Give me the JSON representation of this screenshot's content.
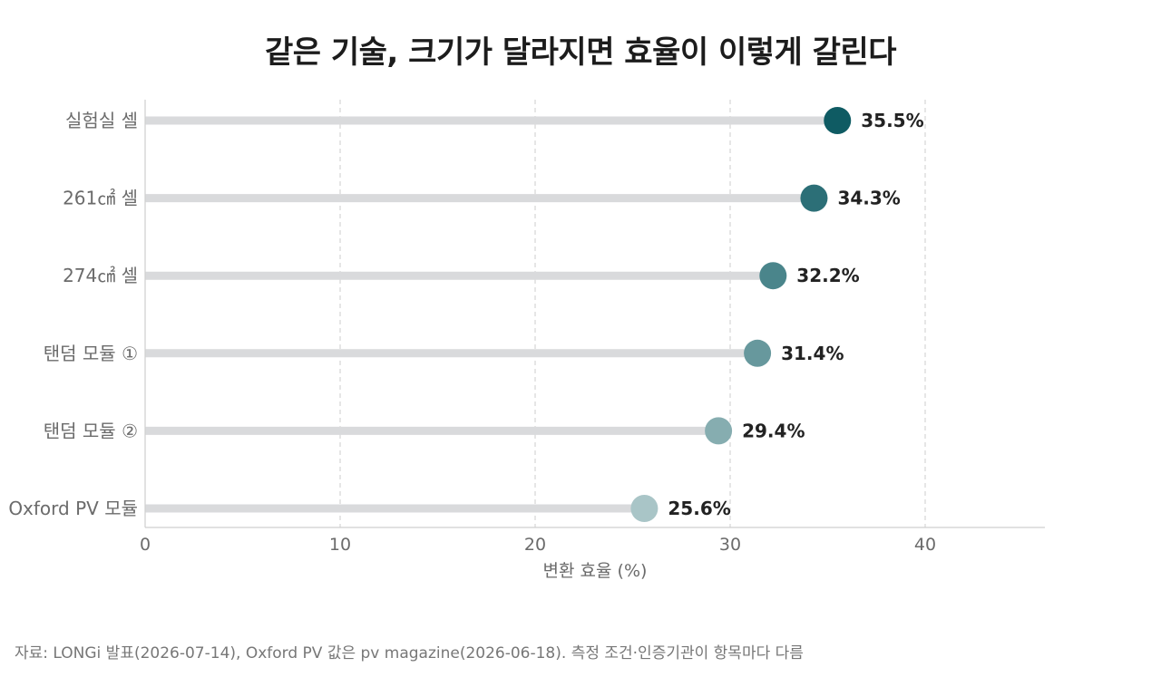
{
  "title": "같은 기술, 크기가 달라지면 효율이 이렇게 갈린다",
  "source": "자료: LONGi 발표(2026-07-14), Oxford PV 값은 pv magazine(2026-06-18). 측정 조건·인증기관이 항목마다 다름",
  "chart_data": {
    "type": "lollipop",
    "orientation": "horizontal",
    "title": "같은 기술, 크기가 달라지면 효율이 이렇게 갈린다",
    "xlabel": "변환 효율 (%)",
    "ylabel": "",
    "xlim": [
      0,
      46
    ],
    "xticks": [
      0,
      10,
      20,
      30,
      40
    ],
    "grid": "vertical-dashed",
    "categories": [
      "실험실 셀",
      "261㎠ 셀",
      "274㎠ 셀",
      "탠덤 모듈 ①",
      "탠덤 모듈 ②",
      "Oxford PV 모듈"
    ],
    "values": [
      35.5,
      34.3,
      32.2,
      31.4,
      29.4,
      25.6
    ],
    "value_labels": [
      "35.5%",
      "34.3%",
      "32.2%",
      "31.4%",
      "29.4%",
      "25.6%"
    ],
    "colors": [
      "#0f5b63",
      "#2c6f77",
      "#4a858b",
      "#67989d",
      "#86adb0",
      "#a9c5c7"
    ],
    "stem_color": "#d9dadc"
  }
}
